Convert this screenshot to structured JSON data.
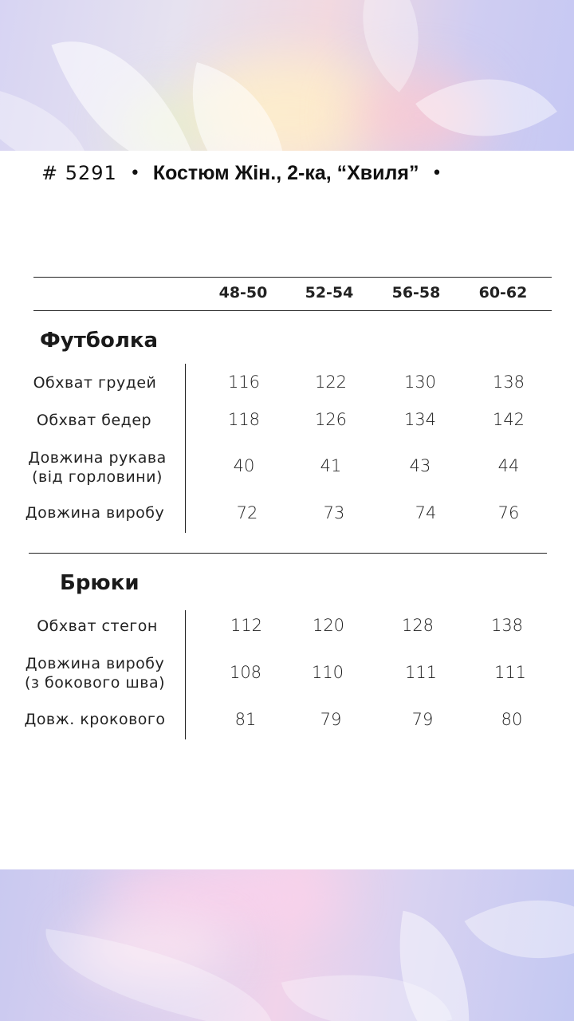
{
  "title": {
    "code": "# 5291",
    "separator": "•",
    "name": "Костюм Жін., 2-ка, “Хвиля”",
    "trailing": "•"
  },
  "sizes": [
    "48-50",
    "52-54",
    "56-58",
    "60-62"
  ],
  "sections": [
    {
      "title": "Футболка",
      "rows": [
        {
          "label": [
            "Обхват грудей"
          ],
          "values": [
            "116",
            "122",
            "130",
            "138"
          ]
        },
        {
          "label": [
            "Обхват бедер"
          ],
          "values": [
            "118",
            "126",
            "134",
            "142"
          ]
        },
        {
          "label": [
            "Довжина рукава",
            "(від горловини)"
          ],
          "values": [
            "40",
            "41",
            "43",
            "44"
          ]
        },
        {
          "label": [
            "Довжина виробу"
          ],
          "values": [
            "72",
            "73",
            "74",
            "76"
          ]
        }
      ]
    },
    {
      "title": "Брюки",
      "rows": [
        {
          "label": [
            "Обхват стегон"
          ],
          "values": [
            "112",
            "120",
            "128",
            "138"
          ]
        },
        {
          "label": [
            "Довжина виробу",
            "(з бокового шва)"
          ],
          "values": [
            "108",
            "110",
            "111",
            "111"
          ]
        },
        {
          "label": [
            "Довж. крокового"
          ],
          "values": [
            "81",
            "79",
            "79",
            "80"
          ]
        }
      ]
    }
  ]
}
